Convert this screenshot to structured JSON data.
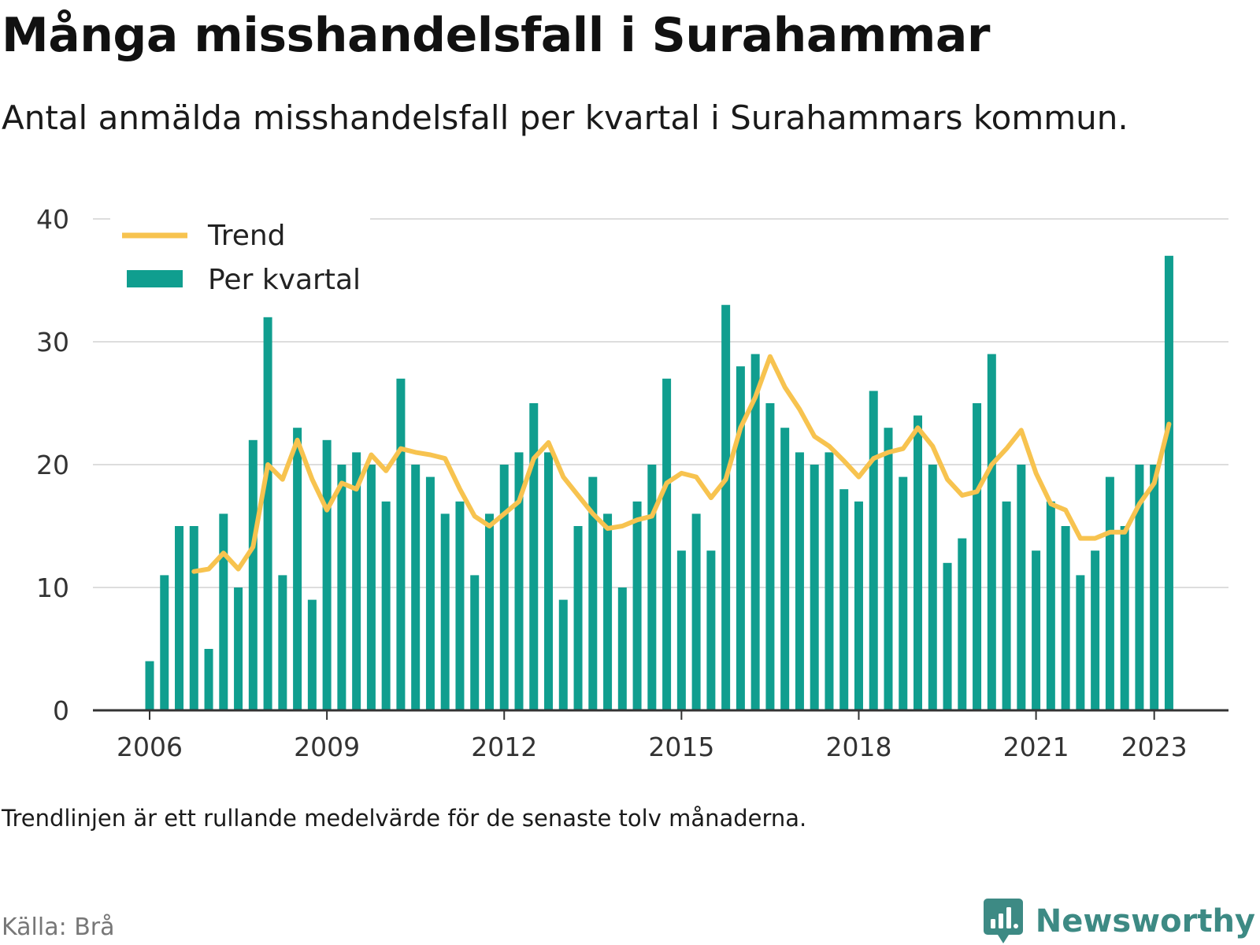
{
  "title": "Många misshandelsfall i Surahammar",
  "subtitle": "Antal anmälda misshandelsfall per kvartal i Surahammars kommun.",
  "footnote": "Trendlinjen är ett rullande medelvärde för de senaste tolv månaderna.",
  "source": "Källa: Brå",
  "brand": {
    "name": "Newsworthy",
    "icon": "newsworthy-logo-icon",
    "color": "#3d8a84"
  },
  "chart_data": {
    "type": "bar",
    "grid": true,
    "legend_position": "top-left",
    "ylim": [
      0,
      40
    ],
    "y_ticks": [
      0,
      10,
      20,
      30,
      40
    ],
    "x_ticks": [
      "2006",
      "2009",
      "2012",
      "2015",
      "2018",
      "2021",
      "2023"
    ],
    "categories": [
      "2006 Q1",
      "2006 Q2",
      "2006 Q3",
      "2006 Q4",
      "2007 Q1",
      "2007 Q2",
      "2007 Q3",
      "2007 Q4",
      "2008 Q1",
      "2008 Q2",
      "2008 Q3",
      "2008 Q4",
      "2009 Q1",
      "2009 Q2",
      "2009 Q3",
      "2009 Q4",
      "2010 Q1",
      "2010 Q2",
      "2010 Q3",
      "2010 Q4",
      "2011 Q1",
      "2011 Q2",
      "2011 Q3",
      "2011 Q4",
      "2012 Q1",
      "2012 Q2",
      "2012 Q3",
      "2012 Q4",
      "2013 Q1",
      "2013 Q2",
      "2013 Q3",
      "2013 Q4",
      "2014 Q1",
      "2014 Q2",
      "2014 Q3",
      "2014 Q4",
      "2015 Q1",
      "2015 Q2",
      "2015 Q3",
      "2015 Q4",
      "2016 Q1",
      "2016 Q2",
      "2016 Q3",
      "2016 Q4",
      "2017 Q1",
      "2017 Q2",
      "2017 Q3",
      "2017 Q4",
      "2018 Q1",
      "2018 Q2",
      "2018 Q3",
      "2018 Q4",
      "2019 Q1",
      "2019 Q2",
      "2019 Q3",
      "2019 Q4",
      "2020 Q1",
      "2020 Q2",
      "2020 Q3",
      "2020 Q4",
      "2021 Q1",
      "2021 Q2",
      "2021 Q3",
      "2021 Q4",
      "2022 Q1",
      "2022 Q2",
      "2022 Q3",
      "2022 Q4",
      "2023 Q1",
      "2023 Q2"
    ],
    "series": [
      {
        "name": "Per kvartal",
        "type": "bar",
        "color": "#109e8f",
        "values": [
          4,
          11,
          15,
          15,
          5,
          16,
          10,
          22,
          32,
          11,
          23,
          9,
          22,
          20,
          21,
          20,
          17,
          27,
          20,
          19,
          16,
          17,
          11,
          16,
          20,
          21,
          25,
          21,
          9,
          15,
          19,
          16,
          10,
          17,
          20,
          27,
          13,
          16,
          13,
          33,
          28,
          29,
          25,
          23,
          21,
          20,
          21,
          18,
          17,
          26,
          23,
          19,
          24,
          20,
          12,
          14,
          25,
          29,
          17,
          20,
          13,
          17,
          15,
          11,
          13,
          19,
          15,
          20,
          20,
          37
        ]
      },
      {
        "name": "Trend",
        "type": "line",
        "color": "#f7c34f",
        "values": [
          null,
          null,
          null,
          11.3,
          11.5,
          12.8,
          11.5,
          13.3,
          20,
          18.8,
          22,
          18.8,
          16.3,
          18.5,
          18,
          20.8,
          19.5,
          21.3,
          21,
          20.8,
          20.5,
          18,
          15.8,
          15,
          16,
          17,
          20.5,
          21.8,
          19,
          17.5,
          16,
          14.8,
          15,
          15.5,
          15.8,
          18.5,
          19.3,
          19,
          17.3,
          18.8,
          23,
          25.5,
          28.8,
          26.3,
          24.5,
          22.3,
          21.5,
          20.3,
          19,
          20.5,
          21,
          21.3,
          23,
          21.5,
          18.8,
          17.5,
          17.8,
          20,
          21.3,
          22.8,
          19.3,
          16.8,
          16.3,
          14,
          14,
          14.5,
          14.5,
          16.8,
          18.5,
          23.3
        ]
      }
    ]
  }
}
